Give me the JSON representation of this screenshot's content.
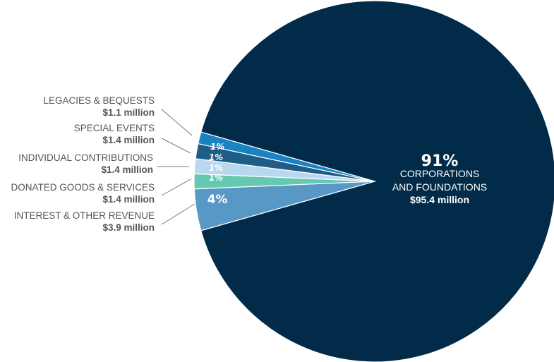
{
  "chart_data": {
    "type": "pie",
    "slices": [
      {
        "label": "CORPORATIONS AND FOUNDATIONS",
        "label_lines": [
          "CORPORATIONS",
          "AND FOUNDATIONS"
        ],
        "value": 95.4,
        "display_value": "$95.4 million",
        "percent": "91%",
        "color": "#012b48"
      },
      {
        "label": "INTEREST & OTHER REVENUE",
        "value": 3.9,
        "display_value": "$3.9 million",
        "percent": "4%",
        "color": "#5898c6"
      },
      {
        "label": "DONATED GOODS & SERVICES",
        "value": 1.4,
        "display_value": "$1.4 million",
        "percent": "1%",
        "color": "#66c8b0"
      },
      {
        "label": "INDIVIDUAL CONTRIBUTIONS",
        "value": 1.4,
        "display_value": "$1.4 million",
        "percent": "1%",
        "color": "#b9d8ef"
      },
      {
        "label": "SPECIAL EVENTS",
        "value": 1.4,
        "display_value": "$1.4 million",
        "percent": "1%",
        "color": "#1f5d86"
      },
      {
        "label": "LEGACIES & BEQUESTS",
        "value": 1.1,
        "display_value": "$1.1 million",
        "percent": "1%",
        "color": "#1883c3"
      }
    ]
  }
}
